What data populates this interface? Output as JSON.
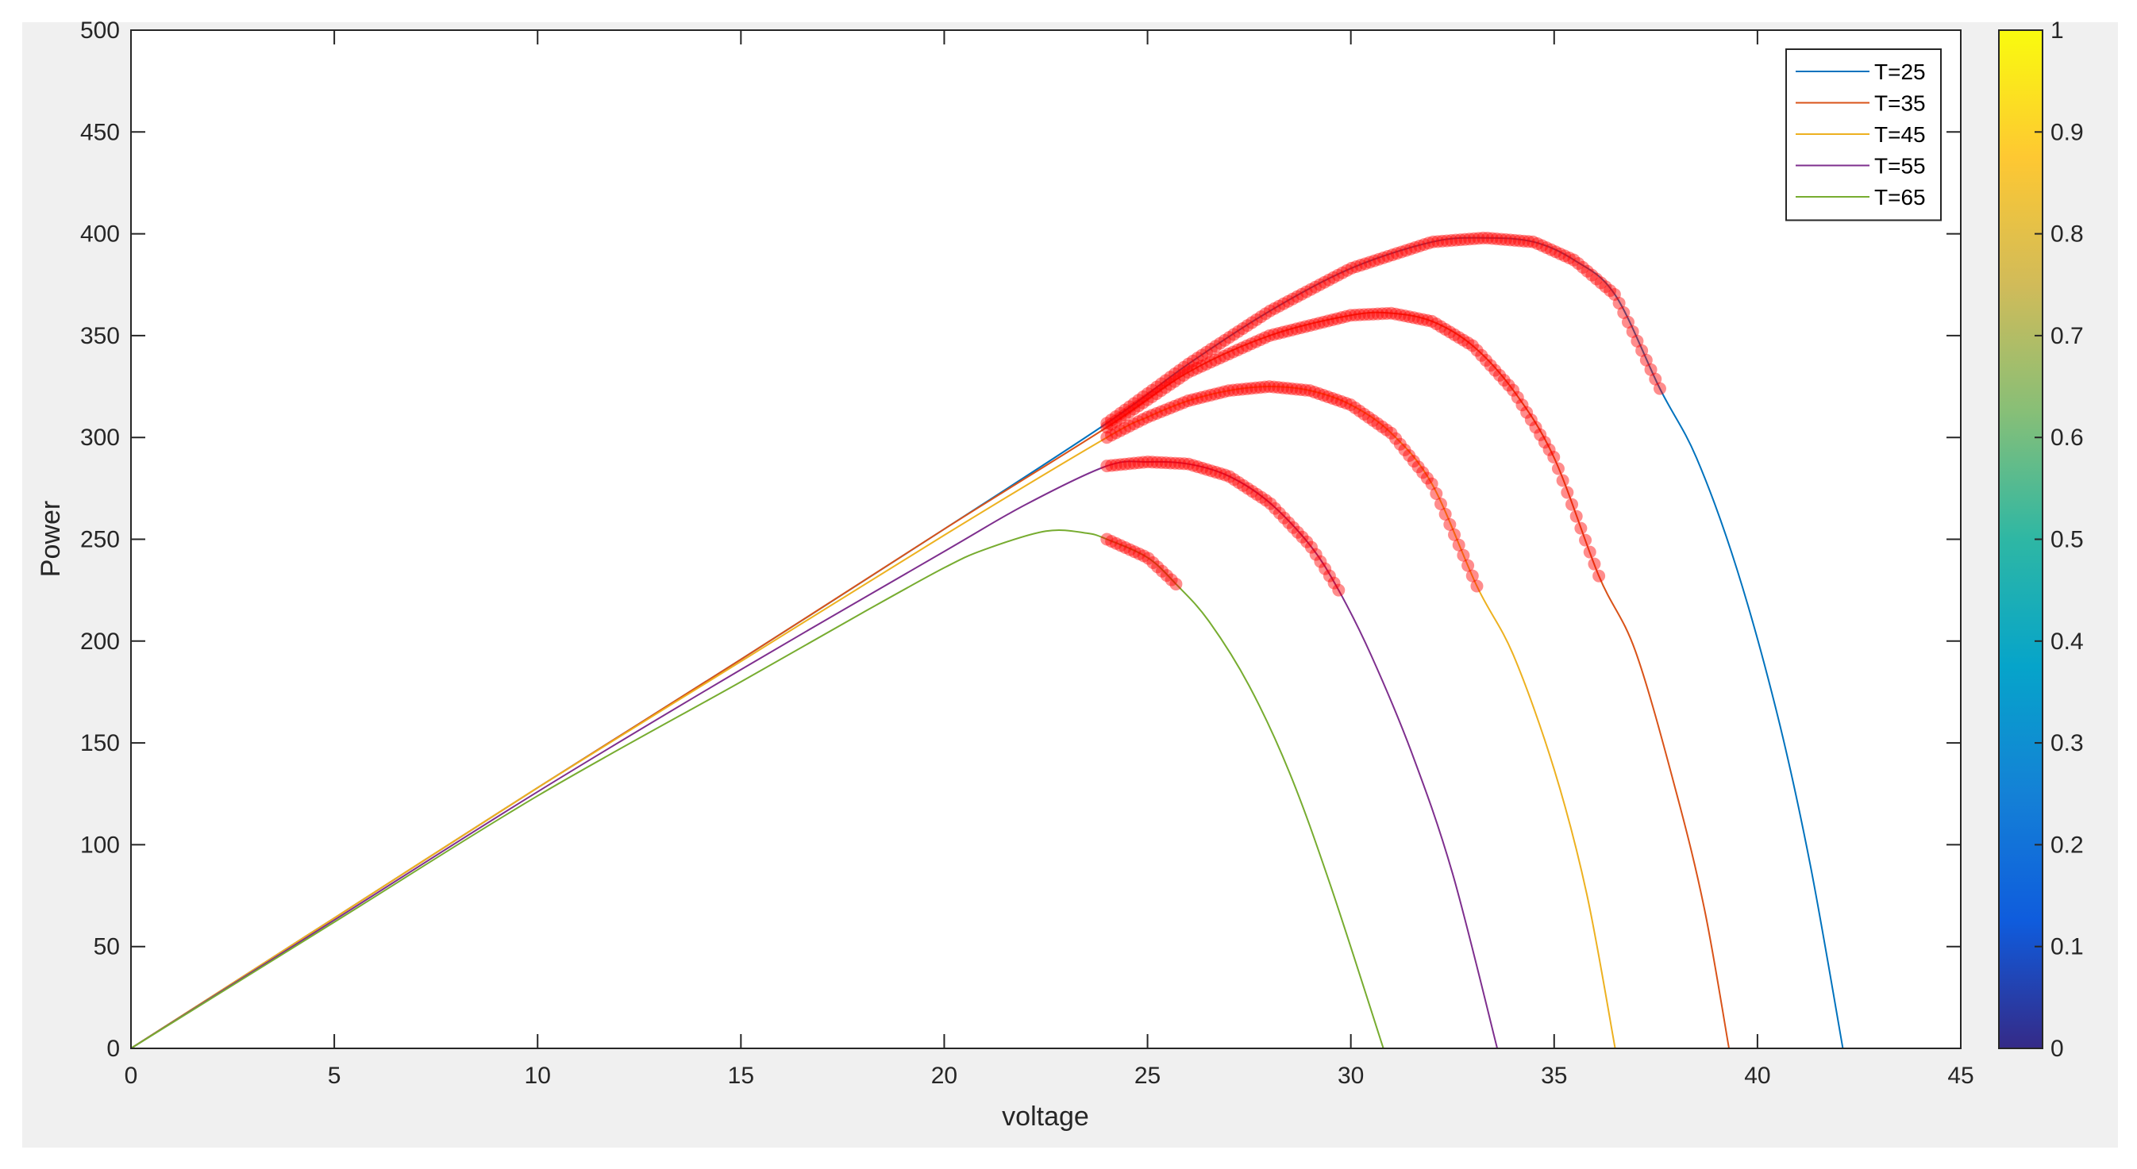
{
  "chart_data": {
    "type": "line",
    "title": "",
    "xlabel": "voltage",
    "ylabel": "Power",
    "xlim": [
      0,
      45
    ],
    "ylim": [
      0,
      500
    ],
    "xticks": [
      "0",
      "5",
      "10",
      "15",
      "20",
      "25",
      "30",
      "35",
      "40",
      "45"
    ],
    "yticks": [
      "0",
      "50",
      "100",
      "150",
      "200",
      "250",
      "300",
      "350",
      "400",
      "450",
      "500"
    ],
    "grid": false,
    "legend_position": "top-right",
    "series": [
      {
        "name": "T=25",
        "color": "#0072BD",
        "points": [
          [
            0,
            0
          ],
          [
            5,
            64
          ],
          [
            10,
            128
          ],
          [
            15,
            191
          ],
          [
            20,
            255
          ],
          [
            24,
            307
          ],
          [
            26,
            336
          ],
          [
            28,
            362
          ],
          [
            30,
            383
          ],
          [
            32,
            396
          ],
          [
            33.3,
            398
          ],
          [
            34.5,
            396
          ],
          [
            35.5,
            387
          ],
          [
            36.5,
            370
          ],
          [
            37.6,
            324
          ],
          [
            38.5,
            290
          ],
          [
            39.5,
            235
          ],
          [
            40.5,
            163
          ],
          [
            41.3,
            90
          ],
          [
            42.1,
            0
          ]
        ],
        "highlight": [
          24.0,
          37.6
        ]
      },
      {
        "name": "T=35",
        "color": "#D95319",
        "points": [
          [
            0,
            0
          ],
          [
            5,
            64
          ],
          [
            10,
            128
          ],
          [
            15,
            191
          ],
          [
            20,
            255
          ],
          [
            24,
            305
          ],
          [
            26,
            332
          ],
          [
            28,
            350
          ],
          [
            30,
            360
          ],
          [
            31,
            361
          ],
          [
            32,
            357
          ],
          [
            33,
            345
          ],
          [
            34,
            323
          ],
          [
            35,
            290
          ],
          [
            36.1,
            232
          ],
          [
            37,
            195
          ],
          [
            38,
            126
          ],
          [
            38.7,
            68
          ],
          [
            39.3,
            0
          ]
        ],
        "highlight": [
          24.0,
          36.1
        ]
      },
      {
        "name": "T=45",
        "color": "#EDB120",
        "points": [
          [
            0,
            0
          ],
          [
            5,
            64
          ],
          [
            10,
            128
          ],
          [
            15,
            190
          ],
          [
            20,
            252
          ],
          [
            24,
            300
          ],
          [
            25,
            310
          ],
          [
            26,
            318
          ],
          [
            27,
            323
          ],
          [
            28,
            325
          ],
          [
            29,
            323
          ],
          [
            30,
            316
          ],
          [
            31,
            302
          ],
          [
            32,
            277
          ],
          [
            33.1,
            227
          ],
          [
            34,
            193
          ],
          [
            35,
            137
          ],
          [
            35.8,
            76
          ],
          [
            36.5,
            0
          ]
        ],
        "highlight": [
          24.0,
          33.1
        ]
      },
      {
        "name": "T=55",
        "color": "#7E2F8E",
        "points": [
          [
            0,
            0
          ],
          [
            5,
            63
          ],
          [
            10,
            126
          ],
          [
            15,
            186
          ],
          [
            20,
            244
          ],
          [
            22,
            267
          ],
          [
            24,
            286
          ],
          [
            25,
            288
          ],
          [
            26,
            287
          ],
          [
            27,
            281
          ],
          [
            28,
            268
          ],
          [
            29,
            247
          ],
          [
            29.7,
            225
          ],
          [
            30.5,
            193
          ],
          [
            31.5,
            145
          ],
          [
            32.5,
            86
          ],
          [
            33.6,
            0
          ]
        ],
        "highlight": [
          24.0,
          29.7
        ]
      },
      {
        "name": "T=65",
        "color": "#77AC30",
        "points": [
          [
            0,
            0
          ],
          [
            5,
            62
          ],
          [
            10,
            124
          ],
          [
            15,
            180
          ],
          [
            18,
            214
          ],
          [
            20,
            236
          ],
          [
            21,
            245
          ],
          [
            22.5,
            254
          ],
          [
            23.5,
            253
          ],
          [
            24,
            250
          ],
          [
            25,
            241
          ],
          [
            25.7,
            228
          ],
          [
            26.5,
            210
          ],
          [
            27.5,
            178
          ],
          [
            28.5,
            135
          ],
          [
            29.5,
            80
          ],
          [
            30.8,
            0
          ]
        ],
        "highlight": [
          24.0,
          25.7
        ]
      }
    ],
    "marker_color": "#FF0000",
    "colorbar": {
      "colormap": "parula",
      "range": [
        0,
        1
      ],
      "ticks": [
        "0",
        "0.1",
        "0.2",
        "0.3",
        "0.4",
        "0.5",
        "0.6",
        "0.7",
        "0.8",
        "0.9",
        "1"
      ],
      "colors": [
        "#352A87",
        "#0F5CDD",
        "#1481D6",
        "#06A4CA",
        "#2EB7A4",
        "#87BF77",
        "#D1BB59",
        "#FEC832",
        "#F9FB0E"
      ]
    }
  }
}
